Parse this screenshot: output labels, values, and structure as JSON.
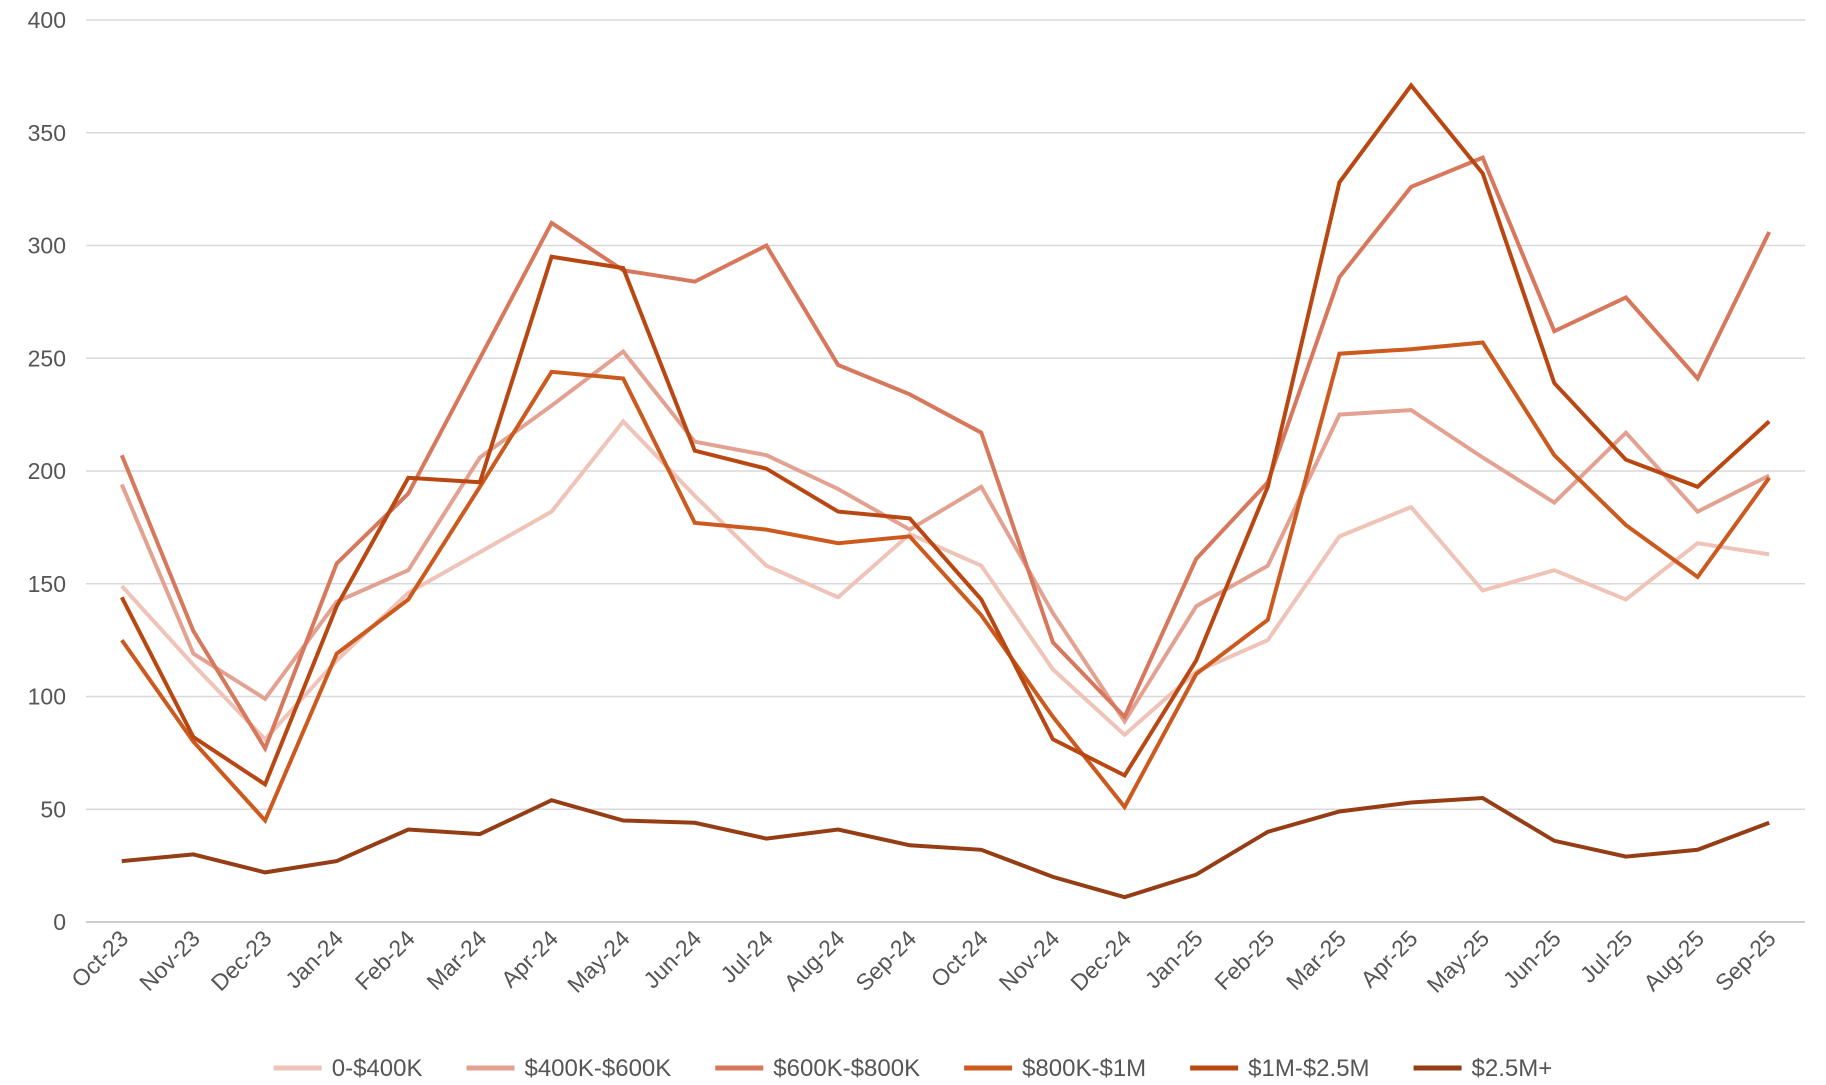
{
  "chart_data": {
    "type": "line",
    "title": "",
    "xlabel": "",
    "ylabel": "",
    "ylim": [
      0,
      400
    ],
    "yticks": [
      "0",
      "50",
      "100",
      "150",
      "200",
      "250",
      "300",
      "350",
      "400"
    ],
    "grid": true,
    "legend_position": "bottom",
    "categories": [
      "Oct-23",
      "Nov-23",
      "Dec-23",
      "Jan-24",
      "Feb-24",
      "Mar-24",
      "Apr-24",
      "May-24",
      "Jun-24",
      "Jul-24",
      "Aug-24",
      "Sep-24",
      "Oct-24",
      "Nov-24",
      "Dec-24",
      "Jan-25",
      "Feb-25",
      "Mar-25",
      "Apr-25",
      "May-25",
      "Jun-25",
      "Jul-25",
      "Aug-25",
      "Sep-25"
    ],
    "series": [
      {
        "name": "0-$400K",
        "color": "#efc3b7",
        "values": [
          149,
          114,
          81,
          116,
          146,
          164,
          182,
          222,
          189,
          158,
          144,
          172,
          158,
          112,
          83,
          111,
          125,
          171,
          184,
          147,
          156,
          143,
          168,
          163
        ]
      },
      {
        "name": "$400K-$600K",
        "color": "#e3a191",
        "values": [
          194,
          119,
          99,
          142,
          156,
          206,
          229,
          253,
          213,
          207,
          192,
          174,
          193,
          137,
          89,
          140,
          158,
          225,
          227,
          206,
          186,
          217,
          182,
          198
        ]
      },
      {
        "name": "$600K-$800K",
        "color": "#d7775c",
        "values": [
          207,
          129,
          77,
          159,
          190,
          250,
          310,
          289,
          284,
          300,
          247,
          234,
          217,
          124,
          91,
          161,
          195,
          286,
          326,
          339,
          262,
          277,
          241,
          306
        ]
      },
      {
        "name": "$800K-$1M",
        "color": "#cc5a1e",
        "values": [
          125,
          80,
          45,
          119,
          143,
          193,
          244,
          241,
          177,
          174,
          168,
          171,
          136,
          91,
          51,
          110,
          134,
          252,
          254,
          257,
          207,
          176,
          153,
          197
        ]
      },
      {
        "name": "$1M-$2.5M",
        "color": "#b94711",
        "values": [
          144,
          82,
          61,
          140,
          197,
          195,
          295,
          290,
          209,
          201,
          182,
          179,
          143,
          81,
          65,
          116,
          193,
          328,
          371,
          332,
          239,
          205,
          193,
          222
        ]
      },
      {
        "name": "$2.5M+",
        "color": "#953d14",
        "values": [
          27,
          30,
          22,
          27,
          41,
          39,
          54,
          45,
          44,
          37,
          41,
          34,
          32,
          20,
          11,
          21,
          40,
          49,
          53,
          55,
          36,
          29,
          32,
          44
        ]
      }
    ]
  }
}
